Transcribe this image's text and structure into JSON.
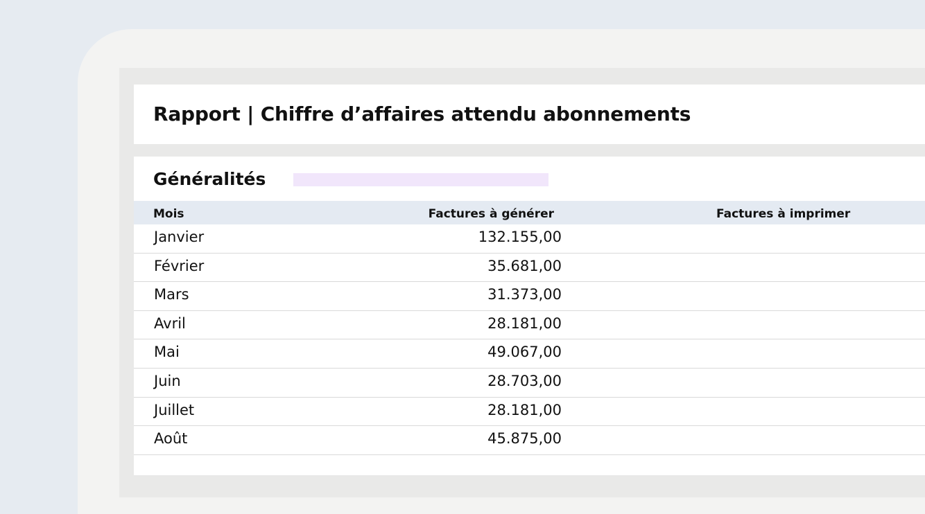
{
  "report": {
    "title": "Rapport | Chiffre d’affaires attendu abonnements"
  },
  "section": {
    "title": "Généralités"
  },
  "table": {
    "columns": {
      "month": "Mois",
      "to_generate": "Factures à générer",
      "to_print": "Factures à imprimer"
    },
    "rows": [
      {
        "month": "Janvier",
        "to_generate": "132.155,00",
        "to_print": ""
      },
      {
        "month": "Février",
        "to_generate": "35.681,00",
        "to_print": ""
      },
      {
        "month": "Mars",
        "to_generate": "31.373,00",
        "to_print": ""
      },
      {
        "month": "Avril",
        "to_generate": "28.181,00",
        "to_print": ""
      },
      {
        "month": "Mai",
        "to_generate": "49.067,00",
        "to_print": ""
      },
      {
        "month": "Juin",
        "to_generate": "28.703,00",
        "to_print": ""
      },
      {
        "month": "Juillet",
        "to_generate": "28.181,00",
        "to_print": ""
      },
      {
        "month": "Août",
        "to_generate": "45.875,00",
        "to_print": ""
      }
    ]
  },
  "colors": {
    "background": "#e6ebf1",
    "frame": "#f3f3f2",
    "canvas": "#e9e9e8",
    "header_row": "#e4eaf2",
    "highlight": "#f1e6fb"
  }
}
